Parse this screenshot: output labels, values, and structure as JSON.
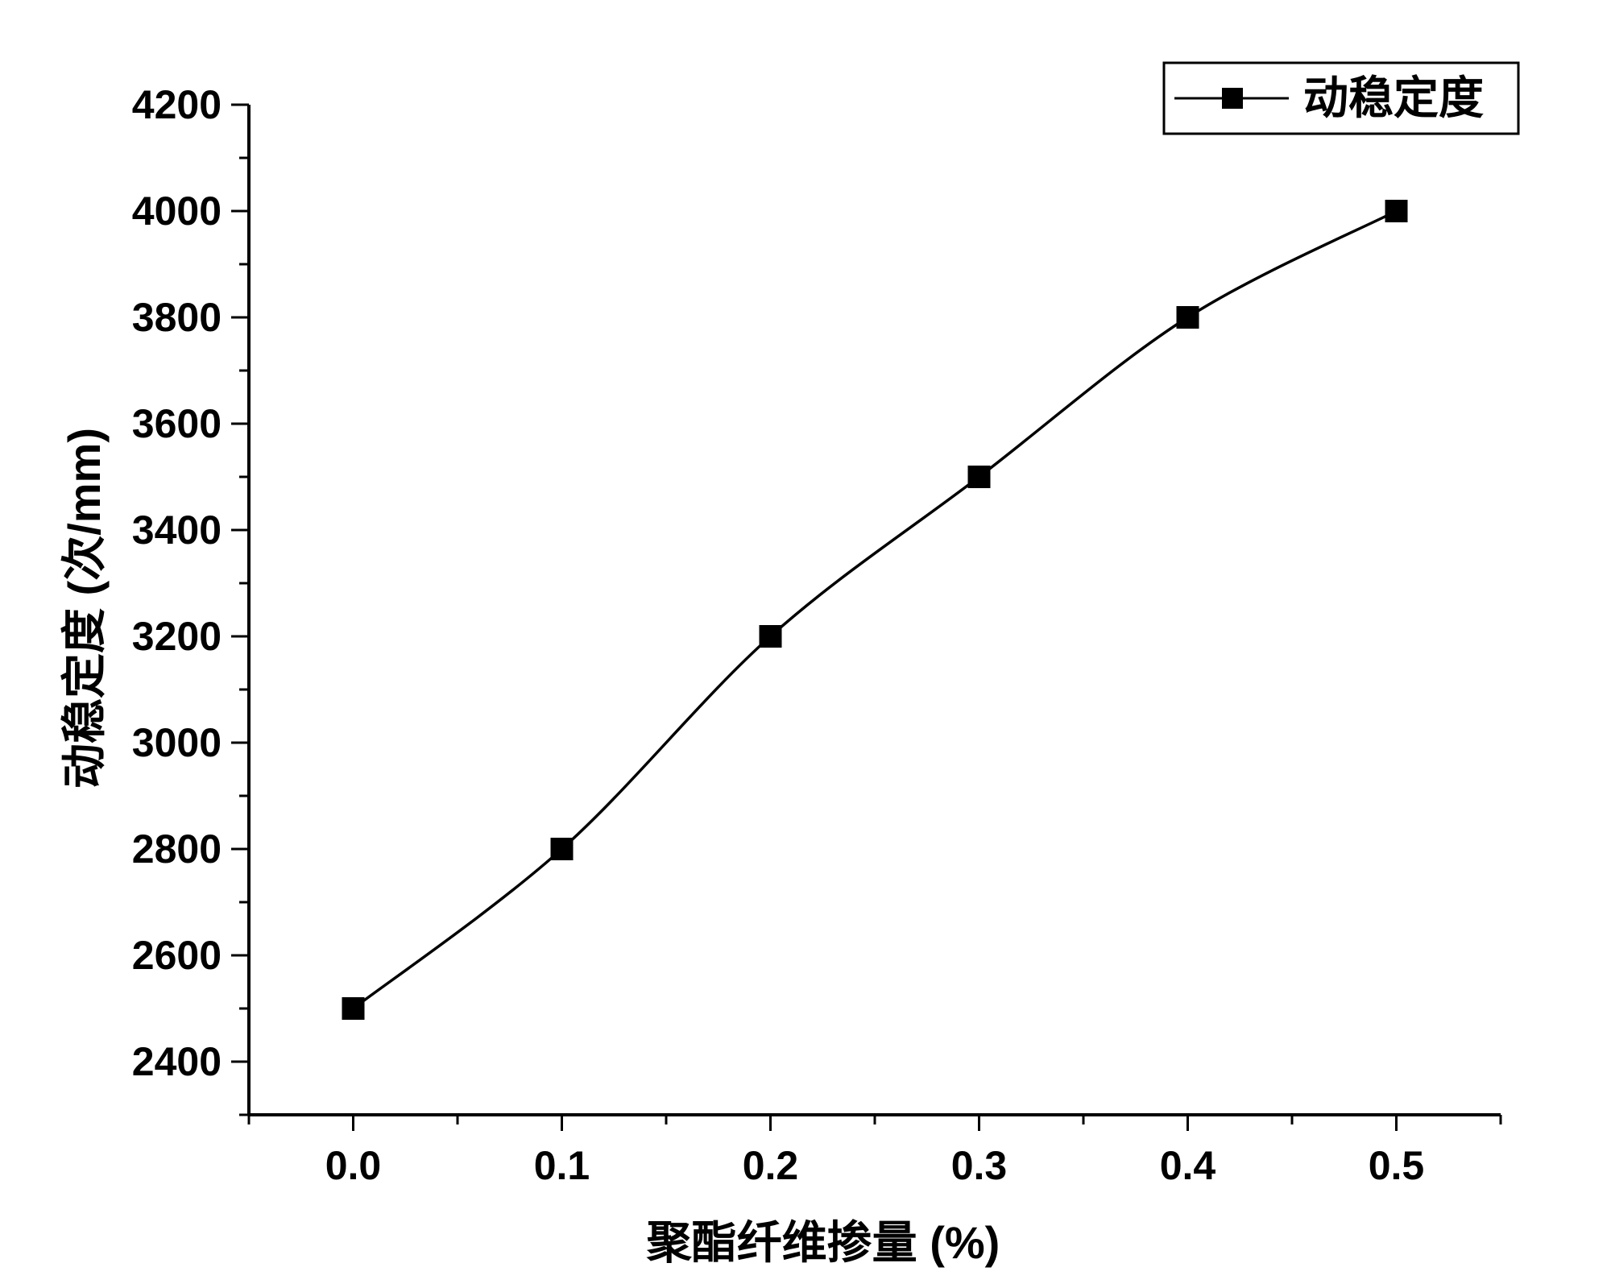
{
  "chart_data": {
    "type": "line",
    "xlabel": "聚酯纤维掺量 (%)",
    "ylabel": "动稳定度 (次/mm)",
    "x": [
      0.0,
      0.1,
      0.2,
      0.3,
      0.4,
      0.5
    ],
    "x_ticks": [
      "0.0",
      "0.1",
      "0.2",
      "0.3",
      "0.4",
      "0.5"
    ],
    "xlim": [
      -0.05,
      0.55
    ],
    "y_ticks": [
      "2400",
      "2600",
      "2800",
      "3000",
      "3200",
      "3400",
      "3600",
      "3800",
      "4000",
      "4200"
    ],
    "ylim": [
      2300,
      4200
    ],
    "grid": false,
    "legend_position": "top-right",
    "series": [
      {
        "name": "动稳定度",
        "marker": "square",
        "line": "smooth",
        "color": "#000000",
        "values": [
          2500,
          2800,
          3200,
          3500,
          3800,
          4000
        ]
      }
    ]
  }
}
